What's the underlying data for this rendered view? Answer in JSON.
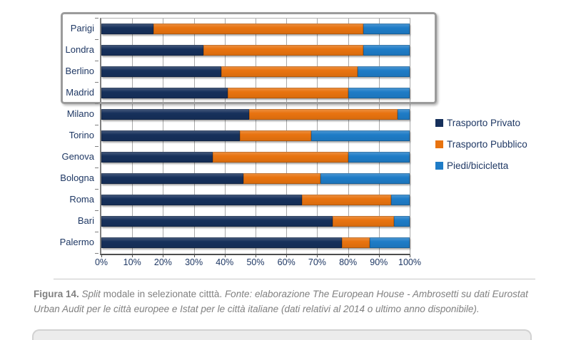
{
  "chart_data": {
    "type": "bar",
    "orientation": "horizontal",
    "stacked": true,
    "grid": true,
    "legend_position": "right",
    "xlim": [
      0,
      100
    ],
    "x_ticks": [
      "0%",
      "10%",
      "20%",
      "30%",
      "40%",
      "50%",
      "60%",
      "70%",
      "80%",
      "90%",
      "100%"
    ],
    "categories": [
      "Parigi",
      "Londra",
      "Berlino",
      "Madrid",
      "Milano",
      "Torino",
      "Genova",
      "Bologna",
      "Roma",
      "Bari",
      "Palermo"
    ],
    "series": [
      {
        "name": "Trasporto Privato",
        "color": "#16305b",
        "values": [
          17,
          33,
          39,
          41,
          48,
          45,
          36,
          46,
          65,
          75,
          78
        ]
      },
      {
        "name": "Trasporto Pubblico",
        "color": "#e8730f",
        "values": [
          68,
          52,
          44,
          39,
          48,
          23,
          44,
          25,
          29,
          20,
          9
        ]
      },
      {
        "name": "Piedi/bicicletta",
        "color": "#1e7cc7",
        "values": [
          15,
          15,
          17,
          20,
          4,
          32,
          20,
          29,
          6,
          5,
          13
        ]
      }
    ],
    "highlighted_categories": [
      "Parigi",
      "Londra",
      "Berlino",
      "Madrid"
    ]
  },
  "caption": {
    "figure_label": "Figura 14.",
    "title_italic": "Split",
    "title_rest": " modale in selezionate citttà. ",
    "fonte_line1": "Fonte: elaborazione The European House - Ambrosetti su dati Eurostat",
    "fonte_line2": "Urban Audit per le città europee e Istat per le città italiane (dati relativi al 2014 o ultimo anno disponibile)."
  },
  "colors": {
    "privato": "#16305b",
    "pubblico": "#e8730f",
    "piedi": "#1e7cc7",
    "axis_text": "#1f3864",
    "gridline": "#a9a9a9",
    "highlight_border": "#9b9b9b",
    "caption_text": "#808080"
  }
}
